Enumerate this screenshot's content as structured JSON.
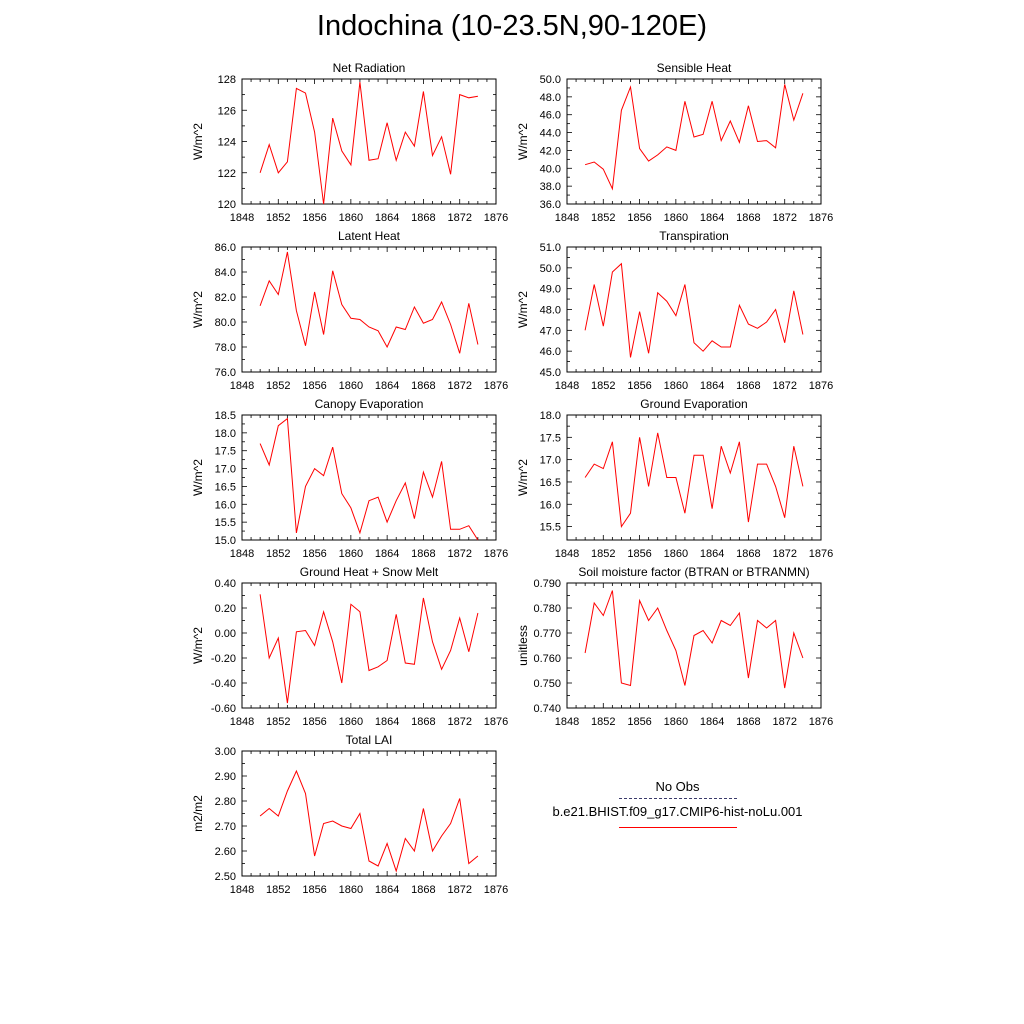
{
  "title": "Indochina (10-23.5N,90-120E)",
  "legend": {
    "obs_label": "No Obs",
    "run_label": "b.e21.BHIST.f09_g17.CMIP6-hist-noLu.001",
    "obs_color": "#3a3a6a",
    "run_color": "#ff0000"
  },
  "chart_data": [
    {
      "type": "line",
      "title": "Net Radiation",
      "ylabel": "W/m^2",
      "xlim": [
        1848,
        1876
      ],
      "ylim": [
        120,
        128
      ],
      "xticks": [
        "1848",
        "1852",
        "1856",
        "1860",
        "1864",
        "1868",
        "1872",
        "1876"
      ],
      "yticks": [
        "120",
        "122",
        "124",
        "126",
        "128"
      ],
      "x": [
        1850,
        1851,
        1852,
        1853,
        1854,
        1855,
        1856,
        1857,
        1858,
        1859,
        1860,
        1861,
        1862,
        1863,
        1864,
        1865,
        1866,
        1867,
        1868,
        1869,
        1870,
        1871,
        1872,
        1873,
        1874
      ],
      "series": [
        {
          "color": "#ff0000",
          "values": [
            122.0,
            123.8,
            122.0,
            122.7,
            127.4,
            127.1,
            124.6,
            120.0,
            125.5,
            123.4,
            122.5,
            127.8,
            122.8,
            122.9,
            125.2,
            122.8,
            124.6,
            123.7,
            127.2,
            123.1,
            124.3,
            121.9,
            127.0,
            126.8,
            126.9
          ]
        }
      ]
    },
    {
      "type": "line",
      "title": "Sensible Heat",
      "ylabel": "W/m^2",
      "xlim": [
        1848,
        1876
      ],
      "ylim": [
        36.0,
        50.0
      ],
      "xticks": [
        "1848",
        "1852",
        "1856",
        "1860",
        "1864",
        "1868",
        "1872",
        "1876"
      ],
      "yticks": [
        "36.0",
        "38.0",
        "40.0",
        "42.0",
        "44.0",
        "46.0",
        "48.0",
        "50.0"
      ],
      "x": [
        1850,
        1851,
        1852,
        1853,
        1854,
        1855,
        1856,
        1857,
        1858,
        1859,
        1860,
        1861,
        1862,
        1863,
        1864,
        1865,
        1866,
        1867,
        1868,
        1869,
        1870,
        1871,
        1872,
        1873,
        1874
      ],
      "series": [
        {
          "color": "#ff0000",
          "values": [
            40.4,
            40.7,
            39.9,
            37.7,
            46.5,
            49.1,
            42.2,
            40.8,
            41.5,
            42.4,
            42.0,
            47.5,
            43.5,
            43.8,
            47.5,
            43.1,
            45.3,
            42.9,
            47.0,
            43.0,
            43.1,
            42.3,
            49.4,
            45.4,
            48.4
          ]
        }
      ]
    },
    {
      "type": "line",
      "title": "Latent Heat",
      "ylabel": "W/m^2",
      "xlim": [
        1848,
        1876
      ],
      "ylim": [
        76.0,
        86.0
      ],
      "xticks": [
        "1848",
        "1852",
        "1856",
        "1860",
        "1864",
        "1868",
        "1872",
        "1876"
      ],
      "yticks": [
        "76.0",
        "78.0",
        "80.0",
        "82.0",
        "84.0",
        "86.0"
      ],
      "x": [
        1850,
        1851,
        1852,
        1853,
        1854,
        1855,
        1856,
        1857,
        1858,
        1859,
        1860,
        1861,
        1862,
        1863,
        1864,
        1865,
        1866,
        1867,
        1868,
        1869,
        1870,
        1871,
        1872,
        1873,
        1874
      ],
      "series": [
        {
          "color": "#ff0000",
          "values": [
            81.3,
            83.3,
            82.2,
            85.6,
            80.9,
            78.1,
            82.4,
            79.0,
            84.1,
            81.4,
            80.3,
            80.2,
            79.6,
            79.3,
            78.0,
            79.6,
            79.4,
            81.2,
            79.9,
            80.2,
            81.6,
            79.8,
            77.5,
            81.5,
            78.2
          ]
        }
      ]
    },
    {
      "type": "line",
      "title": "Transpiration",
      "ylabel": "W/m^2",
      "xlim": [
        1848,
        1876
      ],
      "ylim": [
        45.0,
        51.0
      ],
      "xticks": [
        "1848",
        "1852",
        "1856",
        "1860",
        "1864",
        "1868",
        "1872",
        "1876"
      ],
      "yticks": [
        "45.0",
        "46.0",
        "47.0",
        "48.0",
        "49.0",
        "50.0",
        "51.0"
      ],
      "x": [
        1850,
        1851,
        1852,
        1853,
        1854,
        1855,
        1856,
        1857,
        1858,
        1859,
        1860,
        1861,
        1862,
        1863,
        1864,
        1865,
        1866,
        1867,
        1868,
        1869,
        1870,
        1871,
        1872,
        1873,
        1874
      ],
      "series": [
        {
          "color": "#ff0000",
          "values": [
            47.0,
            49.2,
            47.2,
            49.8,
            50.2,
            45.7,
            47.9,
            45.9,
            48.8,
            48.4,
            47.7,
            49.2,
            46.4,
            46.0,
            46.5,
            46.2,
            46.2,
            48.2,
            47.3,
            47.1,
            47.4,
            48.0,
            46.4,
            48.9,
            46.8
          ]
        }
      ]
    },
    {
      "type": "line",
      "title": "Canopy Evaporation",
      "ylabel": "W/m^2",
      "xlim": [
        1848,
        1876
      ],
      "ylim": [
        15.0,
        18.5
      ],
      "xticks": [
        "1848",
        "1852",
        "1856",
        "1860",
        "1864",
        "1868",
        "1872",
        "1876"
      ],
      "yticks": [
        "15.0",
        "15.5",
        "16.0",
        "16.5",
        "17.0",
        "17.5",
        "18.0",
        "18.5"
      ],
      "x": [
        1850,
        1851,
        1852,
        1853,
        1854,
        1855,
        1856,
        1857,
        1858,
        1859,
        1860,
        1861,
        1862,
        1863,
        1864,
        1865,
        1866,
        1867,
        1868,
        1869,
        1870,
        1871,
        1872,
        1873,
        1874
      ],
      "series": [
        {
          "color": "#ff0000",
          "values": [
            17.7,
            17.1,
            18.2,
            18.4,
            15.2,
            16.5,
            17.0,
            16.8,
            17.6,
            16.3,
            15.9,
            15.2,
            16.1,
            16.2,
            15.5,
            16.1,
            16.6,
            15.6,
            16.9,
            16.2,
            17.2,
            15.3,
            15.3,
            15.4,
            15.0
          ]
        }
      ]
    },
    {
      "type": "line",
      "title": "Ground Evaporation",
      "ylabel": "W/m^2",
      "xlim": [
        1848,
        1876
      ],
      "ylim": [
        15.2,
        18.0
      ],
      "xticks": [
        "1848",
        "1852",
        "1856",
        "1860",
        "1864",
        "1868",
        "1872",
        "1876"
      ],
      "yticks": [
        "15.5",
        "16.0",
        "16.5",
        "17.0",
        "17.5",
        "18.0"
      ],
      "x": [
        1850,
        1851,
        1852,
        1853,
        1854,
        1855,
        1856,
        1857,
        1858,
        1859,
        1860,
        1861,
        1862,
        1863,
        1864,
        1865,
        1866,
        1867,
        1868,
        1869,
        1870,
        1871,
        1872,
        1873,
        1874
      ],
      "series": [
        {
          "color": "#ff0000",
          "values": [
            16.6,
            16.9,
            16.8,
            17.4,
            15.5,
            15.8,
            17.5,
            16.4,
            17.6,
            16.6,
            16.6,
            15.8,
            17.1,
            17.1,
            15.9,
            17.3,
            16.7,
            17.4,
            15.6,
            16.9,
            16.9,
            16.4,
            15.7,
            17.3,
            16.4
          ]
        }
      ]
    },
    {
      "type": "line",
      "title": "Ground Heat + Snow Melt",
      "ylabel": "W/m^2",
      "xlim": [
        1848,
        1876
      ],
      "ylim": [
        -0.6,
        0.4
      ],
      "xticks": [
        "1848",
        "1852",
        "1856",
        "1860",
        "1864",
        "1868",
        "1872",
        "1876"
      ],
      "yticks": [
        "-0.60",
        "-0.40",
        "-0.20",
        "0.00",
        "0.20",
        "0.40"
      ],
      "x": [
        1850,
        1851,
        1852,
        1853,
        1854,
        1855,
        1856,
        1857,
        1858,
        1859,
        1860,
        1861,
        1862,
        1863,
        1864,
        1865,
        1866,
        1867,
        1868,
        1869,
        1870,
        1871,
        1872,
        1873,
        1874
      ],
      "series": [
        {
          "color": "#ff0000",
          "values": [
            0.31,
            -0.2,
            -0.04,
            -0.56,
            0.01,
            0.02,
            -0.1,
            0.17,
            -0.07,
            -0.4,
            0.23,
            0.17,
            -0.3,
            -0.27,
            -0.22,
            0.15,
            -0.24,
            -0.25,
            0.28,
            -0.07,
            -0.29,
            -0.14,
            0.12,
            -0.15,
            0.16
          ]
        }
      ]
    },
    {
      "type": "line",
      "title": "Soil moisture factor (BTRAN or BTRANMN)",
      "ylabel": "unitless",
      "xlim": [
        1848,
        1876
      ],
      "ylim": [
        0.74,
        0.79
      ],
      "xticks": [
        "1848",
        "1852",
        "1856",
        "1860",
        "1864",
        "1868",
        "1872",
        "1876"
      ],
      "yticks": [
        "0.740",
        "0.750",
        "0.760",
        "0.770",
        "0.780",
        "0.790"
      ],
      "x": [
        1850,
        1851,
        1852,
        1853,
        1854,
        1855,
        1856,
        1857,
        1858,
        1859,
        1860,
        1861,
        1862,
        1863,
        1864,
        1865,
        1866,
        1867,
        1868,
        1869,
        1870,
        1871,
        1872,
        1873,
        1874
      ],
      "series": [
        {
          "color": "#ff0000",
          "values": [
            0.762,
            0.782,
            0.777,
            0.787,
            0.75,
            0.749,
            0.783,
            0.775,
            0.78,
            0.771,
            0.763,
            0.749,
            0.769,
            0.771,
            0.766,
            0.775,
            0.773,
            0.778,
            0.752,
            0.775,
            0.772,
            0.775,
            0.748,
            0.77,
            0.76
          ]
        }
      ]
    },
    {
      "type": "line",
      "title": "Total LAI",
      "ylabel": "m2/m2",
      "xlim": [
        1848,
        1876
      ],
      "ylim": [
        2.5,
        3.0
      ],
      "xticks": [
        "1848",
        "1852",
        "1856",
        "1860",
        "1864",
        "1868",
        "1872",
        "1876"
      ],
      "yticks": [
        "2.50",
        "2.60",
        "2.70",
        "2.80",
        "2.90",
        "3.00"
      ],
      "x": [
        1850,
        1851,
        1852,
        1853,
        1854,
        1855,
        1856,
        1857,
        1858,
        1859,
        1860,
        1861,
        1862,
        1863,
        1864,
        1865,
        1866,
        1867,
        1868,
        1869,
        1870,
        1871,
        1872,
        1873,
        1874
      ],
      "series": [
        {
          "color": "#ff0000",
          "values": [
            2.74,
            2.77,
            2.74,
            2.84,
            2.92,
            2.83,
            2.58,
            2.71,
            2.72,
            2.7,
            2.69,
            2.75,
            2.56,
            2.54,
            2.63,
            2.52,
            2.65,
            2.6,
            2.77,
            2.6,
            2.66,
            2.71,
            2.81,
            2.55,
            2.58
          ]
        }
      ]
    }
  ]
}
